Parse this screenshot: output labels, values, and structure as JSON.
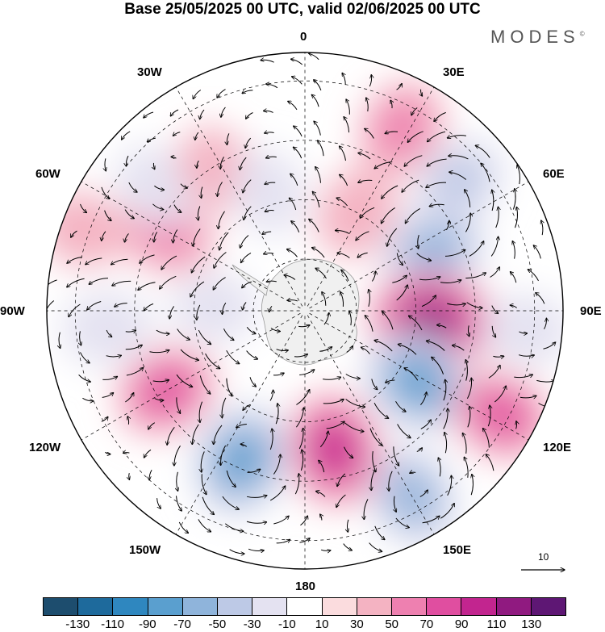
{
  "title": "Base 25/05/2025 00 UTC, valid 02/06/2025 00 UTC",
  "brand": "MODES",
  "brand_mark": "©",
  "longitude_labels": [
    {
      "id": "lon-0",
      "text": "0"
    },
    {
      "id": "lon-30e",
      "text": "30E"
    },
    {
      "id": "lon-60e",
      "text": "60E"
    },
    {
      "id": "lon-90e",
      "text": "90E"
    },
    {
      "id": "lon-120e",
      "text": "120E"
    },
    {
      "id": "lon-150e",
      "text": "150E"
    },
    {
      "id": "lon-180",
      "text": "180"
    },
    {
      "id": "lon-150w",
      "text": "150W"
    },
    {
      "id": "lon-120w",
      "text": "120W"
    },
    {
      "id": "lon-90w",
      "text": "90W"
    },
    {
      "id": "lon-60w",
      "text": "60W"
    },
    {
      "id": "lon-30w",
      "text": "30W"
    }
  ],
  "reference_vector_label": "10",
  "colorbar": {
    "colors": [
      "#1d4d6e",
      "#1e6a9c",
      "#2f87bf",
      "#5a9fcf",
      "#8fb4db",
      "#bdc9e6",
      "#e4e2f1",
      "#ffffff",
      "#fbdcde",
      "#f4b3c2",
      "#ee80b0",
      "#e04ea0",
      "#c2258f",
      "#901a80",
      "#5e1774"
    ],
    "tick_labels": [
      "-130",
      "-110",
      "-90",
      "-70",
      "-50",
      "-30",
      "-10",
      "10",
      "30",
      "50",
      "70",
      "90",
      "110",
      "130"
    ]
  },
  "colors": {
    "antarctica": "#f0f0f0",
    "coast": "#9a9a9a",
    "arrows": "#000000"
  },
  "anomalies": [
    {
      "lon": 28,
      "r": 0.8,
      "value": 60
    },
    {
      "lon": 50,
      "r": 0.78,
      "value": -55
    },
    {
      "lon": 28,
      "r": 0.43,
      "value": 48
    },
    {
      "lon": 65,
      "r": 0.55,
      "value": -80
    },
    {
      "lon": 95,
      "r": 0.49,
      "value": 120
    },
    {
      "lon": 95,
      "r": 0.86,
      "value": -40
    },
    {
      "lon": 75,
      "r": 0.95,
      "value": 25
    },
    {
      "lon": 122,
      "r": 0.52,
      "value": -95
    },
    {
      "lon": 118,
      "r": 0.86,
      "value": 70
    },
    {
      "lon": 150,
      "r": 0.83,
      "value": -75
    },
    {
      "lon": 168,
      "r": 0.55,
      "value": 95
    },
    {
      "lon": 203,
      "r": 0.63,
      "value": -95
    },
    {
      "lon": 240,
      "r": 0.62,
      "value": 70
    },
    {
      "lon": 217,
      "r": 0.74,
      "value": 25
    },
    {
      "lon": 265,
      "r": 0.77,
      "value": -45
    },
    {
      "lon": 272,
      "r": 0.35,
      "value": -35
    },
    {
      "lon": 300,
      "r": 0.62,
      "value": 65
    },
    {
      "lon": 290,
      "r": 0.92,
      "value": 40
    },
    {
      "lon": 310,
      "r": 0.75,
      "value": -40
    },
    {
      "lon": 328,
      "r": 0.65,
      "value": 35
    },
    {
      "lon": 343,
      "r": 0.48,
      "value": -35
    },
    {
      "lon": 345,
      "r": 0.85,
      "value": -25
    }
  ]
}
